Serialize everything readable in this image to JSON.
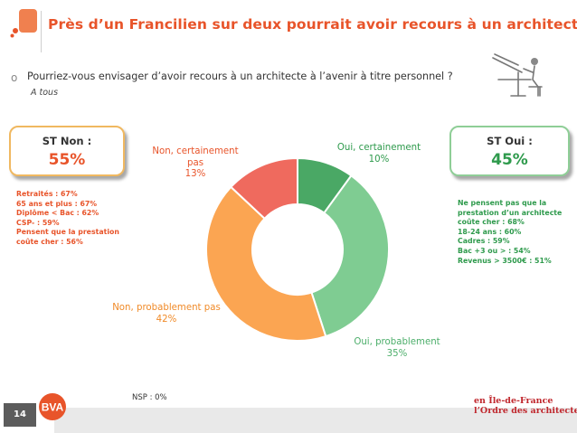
{
  "title": "Près d’un Francilien sur deux pourrait avoir recours à un architecte",
  "question": {
    "bullet": "o",
    "text": "Pourriez-vous envisager d’avoir recours à un architecte à l’avenir à titre personnel ?",
    "base": "A tous"
  },
  "st_non": {
    "label": "ST Non :",
    "value": "55%",
    "details": [
      "Retraités : 67%",
      "65 ans et plus : 67%",
      "Diplôme < Bac : 62%",
      "CSP- : 59%",
      "Pensent que la prestation",
      "coûte cher : 56%"
    ]
  },
  "st_oui": {
    "label": "ST Oui :",
    "value": "45%",
    "details": [
      "Ne pensent pas que la",
      "prestation d’un architecte",
      "coûte cher : 68%",
      "18-24 ans : 60%",
      "Cadres : 59%",
      "Bac +3 ou > : 54%",
      "Revenus > 3500€ : 51%"
    ]
  },
  "chart_data": {
    "type": "pie",
    "style": "donut",
    "slices": [
      {
        "label": "Oui, certainement",
        "value": 10,
        "color": "#4aa865"
      },
      {
        "label": "Oui, probablement",
        "value": 35,
        "color": "#7fcc92"
      },
      {
        "label": "Non, probablement pas",
        "value": 42,
        "color": "#fba552"
      },
      {
        "label": "Non, certainement pas",
        "value": 13,
        "color": "#ef6a5e"
      }
    ],
    "start": "12 o'clock, clockwise"
  },
  "labels": {
    "oui_cert": {
      "name": "Oui, certainement",
      "pct": "10%"
    },
    "oui_prob": {
      "name": "Oui, probablement",
      "pct": "35%"
    },
    "non_prob": {
      "name": "Non, probablement pas",
      "pct": "42%"
    },
    "non_cert": {
      "name": "Non, certainement pas",
      "pct": "13%"
    }
  },
  "nsp": "NSP : 0%",
  "footer": {
    "page": "14",
    "brand": "BVA",
    "org_line1": "en Île-de-France",
    "org_line2": "l’Ordre des architectes"
  },
  "colors": {
    "accent": "#e8542a",
    "green_dark": "#2e9a4c",
    "orange": "#f08a28"
  }
}
